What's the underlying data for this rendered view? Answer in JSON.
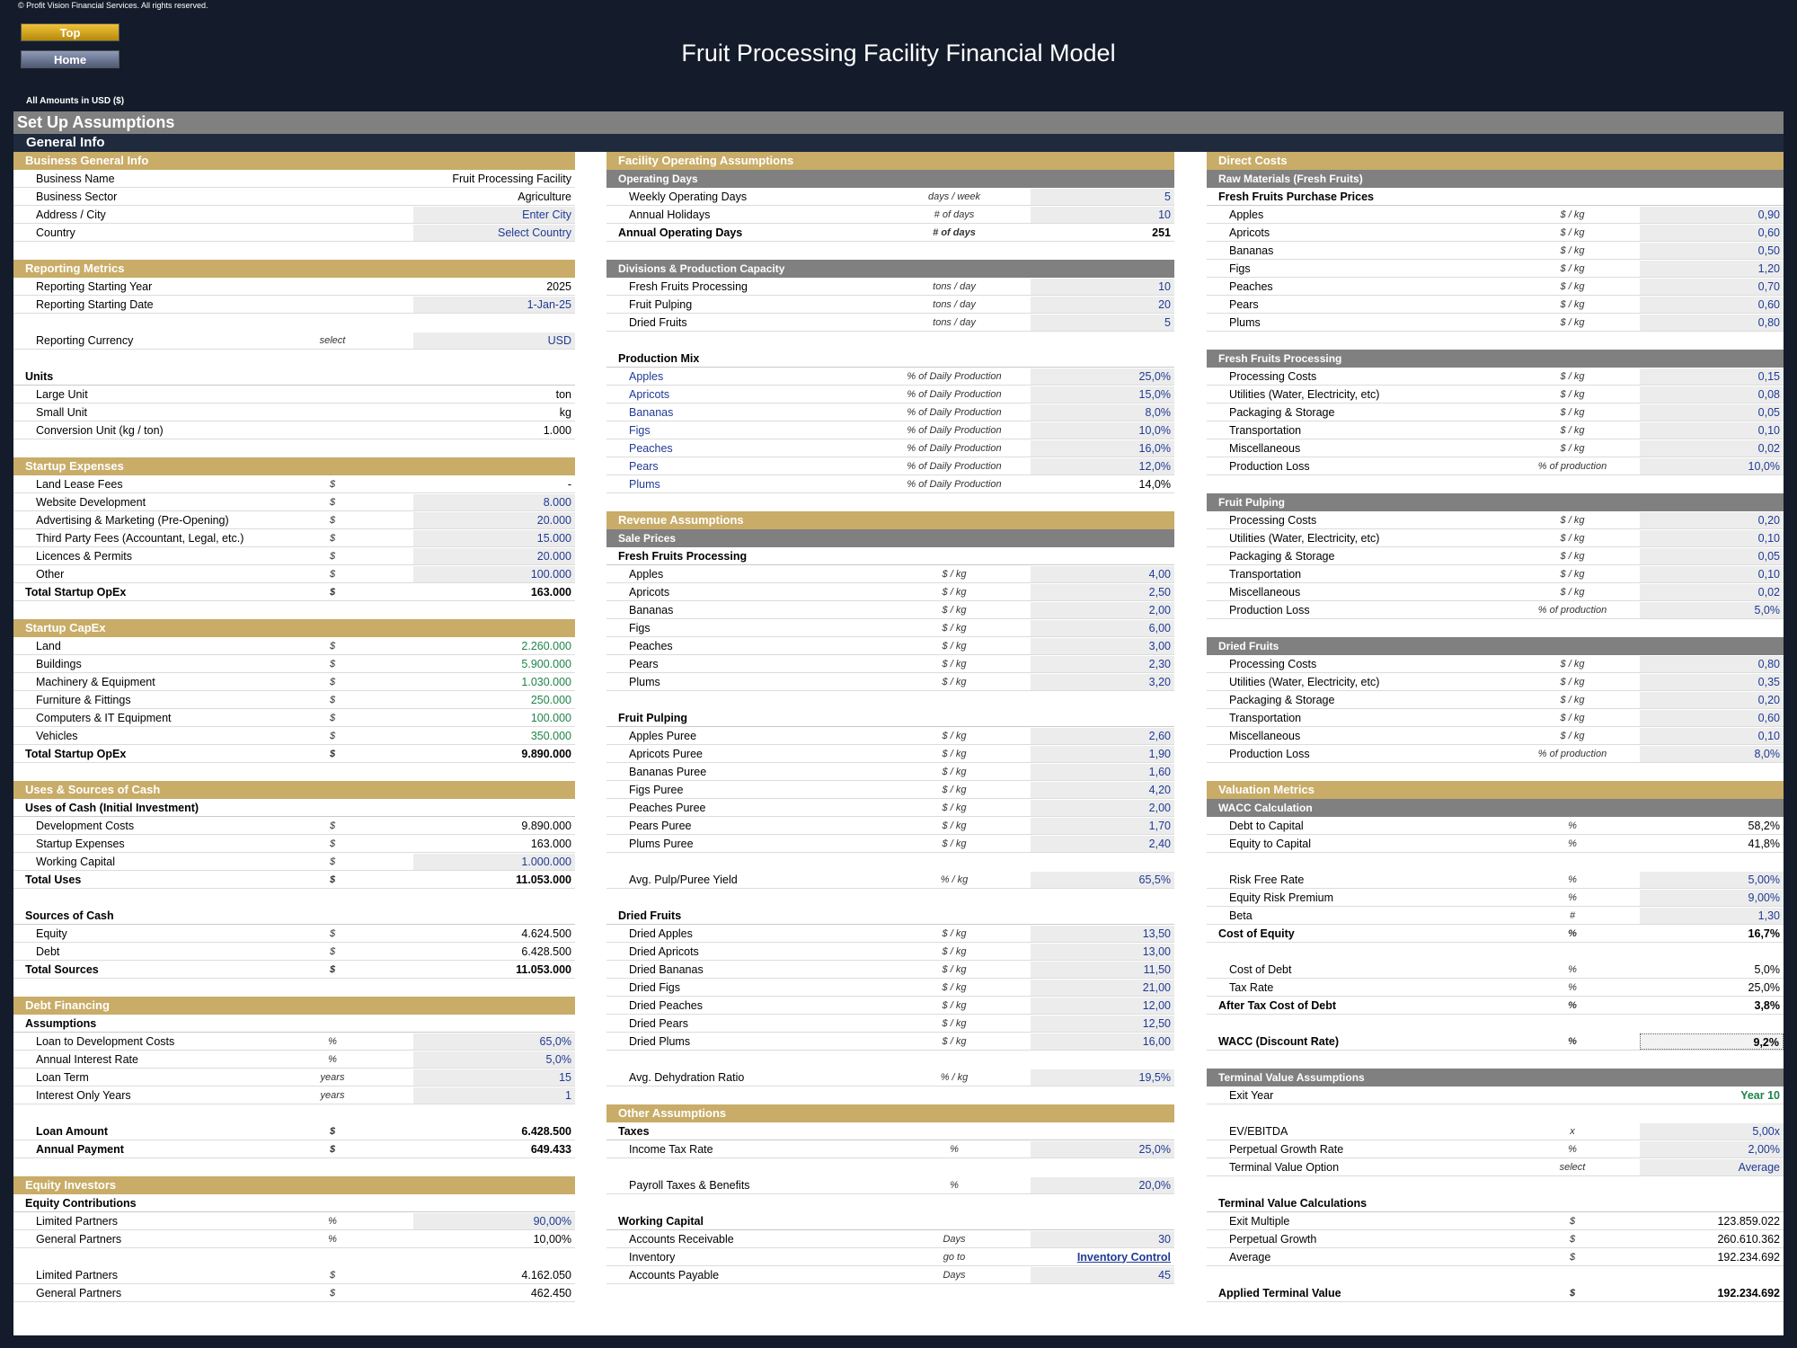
{
  "copyright": "© Profit Vision Financial Services. All rights reserved.",
  "nav": {
    "top": "Top",
    "home": "Home"
  },
  "title": "Fruit Processing Facility Financial Model",
  "currency_note": "All Amounts in  USD ($)",
  "setup_title": "Set Up Assumptions",
  "general_title": "General Info",
  "col1": {
    "business": {
      "title": "Business General Info",
      "rows": [
        {
          "label": "Business Name",
          "value": "Fruit Processing Facility"
        },
        {
          "label": "Business Sector",
          "value": "Agriculture"
        },
        {
          "label": "Address / City",
          "value": "Enter City"
        },
        {
          "label": "Country",
          "value": "Select Country"
        }
      ]
    },
    "reporting": {
      "title": "Reporting Metrics",
      "rows": [
        {
          "label": "Reporting Starting Year",
          "value": "2025"
        },
        {
          "label": "Reporting Starting Date",
          "value": "1-Jan-25"
        },
        {
          "label": "Reporting Currency",
          "unit": "select",
          "value": "USD"
        }
      ],
      "units_title": "Units",
      "units": [
        {
          "label": "Large Unit",
          "value": "ton"
        },
        {
          "label": "Small Unit",
          "value": "kg"
        },
        {
          "label": "Conversion Unit (kg / ton)",
          "value": "1.000"
        }
      ]
    },
    "startup_expenses": {
      "title": "Startup Expenses",
      "rows": [
        {
          "label": "Land Lease Fees",
          "unit": "$",
          "value": "-"
        },
        {
          "label": "Website Development",
          "unit": "$",
          "value": "8.000"
        },
        {
          "label": "Advertising & Marketing (Pre-Opening)",
          "unit": "$",
          "value": "20.000"
        },
        {
          "label": "Third Party Fees (Accountant, Legal, etc.)",
          "unit": "$",
          "value": "15.000"
        },
        {
          "label": "Licences & Permits",
          "unit": "$",
          "value": "20.000"
        },
        {
          "label": "Other",
          "unit": "$",
          "value": "100.000"
        }
      ],
      "total": {
        "label": "Total Startup OpEx",
        "unit": "$",
        "value": "163.000"
      }
    },
    "startup_capex": {
      "title": "Startup CapEx",
      "rows": [
        {
          "label": "Land",
          "unit": "$",
          "value": "2.260.000"
        },
        {
          "label": "Buildings",
          "unit": "$",
          "value": "5.900.000"
        },
        {
          "label": "Machinery & Equipment",
          "unit": "$",
          "value": "1.030.000"
        },
        {
          "label": "Furniture & Fittings",
          "unit": "$",
          "value": "250.000"
        },
        {
          "label": "Computers & IT Equipment",
          "unit": "$",
          "value": "100.000"
        },
        {
          "label": "Vehicles",
          "unit": "$",
          "value": "350.000"
        }
      ],
      "total": {
        "label": "Total Startup OpEx",
        "unit": "$",
        "value": "9.890.000"
      }
    },
    "uses_sources": {
      "title": "Uses & Sources of Cash",
      "uses_title": "Uses of Cash (Initial Investment)",
      "uses": [
        {
          "label": "Development Costs",
          "unit": "$",
          "value": "9.890.000"
        },
        {
          "label": "Startup Expenses",
          "unit": "$",
          "value": "163.000"
        },
        {
          "label": "Working Capital",
          "unit": "$",
          "value": "1.000.000"
        }
      ],
      "uses_total": {
        "label": "Total Uses",
        "unit": "$",
        "value": "11.053.000"
      },
      "sources_title": "Sources of Cash",
      "sources": [
        {
          "label": "Equity",
          "unit": "$",
          "value": "4.624.500"
        },
        {
          "label": "Debt",
          "unit": "$",
          "value": "6.428.500"
        }
      ],
      "sources_total": {
        "label": "Total Sources",
        "unit": "$",
        "value": "11.053.000"
      }
    },
    "debt": {
      "title": "Debt Financing",
      "assumptions_title": "Assumptions",
      "rows": [
        {
          "label": "Loan to Development Costs",
          "unit": "%",
          "value": "65,0%"
        },
        {
          "label": "Annual Interest Rate",
          "unit": "%",
          "value": "5,0%"
        },
        {
          "label": "Loan Term",
          "unit": "years",
          "value": "15"
        },
        {
          "label": "Interest Only Years",
          "unit": "years",
          "value": "1"
        }
      ],
      "loan_amount": {
        "label": "Loan Amount",
        "unit": "$",
        "value": "6.428.500"
      },
      "annual_payment": {
        "label": "Annual Payment",
        "unit": "$",
        "value": "649.433"
      }
    },
    "equity": {
      "title": "Equity Investors",
      "contrib_title": "Equity Contributions",
      "rows": [
        {
          "label": "Limited Partners",
          "unit": "%",
          "value": "90,00%"
        },
        {
          "label": "General Partners",
          "unit": "%",
          "value": "10,00%"
        }
      ],
      "amounts": [
        {
          "label": "Limited Partners",
          "unit": "$",
          "value": "4.162.050"
        },
        {
          "label": "General Partners",
          "unit": "$",
          "value": "462.450"
        }
      ]
    }
  },
  "col2": {
    "facility": {
      "title": "Facility Operating Assumptions",
      "sub": "Operating Days",
      "rows": [
        {
          "label": "Weekly Operating Days",
          "unit": "days / week",
          "value": "5"
        },
        {
          "label": "Annual Holidays",
          "unit": "# of days",
          "value": "10"
        }
      ],
      "total": {
        "label": "Annual Operating Days",
        "unit": "# of days",
        "value": "251"
      }
    },
    "divisions": {
      "sub": "Divisions & Production Capacity",
      "rows": [
        {
          "label": "Fresh Fruits Processing",
          "unit": "tons / day",
          "value": "10"
        },
        {
          "label": "Fruit Pulping",
          "unit": "tons / day",
          "value": "20"
        },
        {
          "label": "Dried Fruits",
          "unit": "tons / day",
          "value": "5"
        }
      ],
      "mix_title": "Production Mix",
      "mix": [
        {
          "label": "Apples",
          "unit": "% of Daily Production",
          "value": "25,0%"
        },
        {
          "label": "Apricots",
          "unit": "% of Daily Production",
          "value": "15,0%"
        },
        {
          "label": "Bananas",
          "unit": "% of Daily Production",
          "value": "8,0%"
        },
        {
          "label": "Figs",
          "unit": "% of Daily Production",
          "value": "10,0%"
        },
        {
          "label": "Peaches",
          "unit": "% of Daily Production",
          "value": "16,0%"
        },
        {
          "label": "Pears",
          "unit": "% of Daily Production",
          "value": "12,0%"
        },
        {
          "label": "Plums",
          "unit": "% of Daily Production",
          "value": "14,0%"
        }
      ]
    },
    "revenue": {
      "title": "Revenue Assumptions",
      "sub": "Sale Prices",
      "fresh_title": "Fresh Fruits Processing",
      "fresh": [
        {
          "label": "Apples",
          "unit": "$ / kg",
          "value": "4,00"
        },
        {
          "label": "Apricots",
          "unit": "$ / kg",
          "value": "2,50"
        },
        {
          "label": "Bananas",
          "unit": "$ / kg",
          "value": "2,00"
        },
        {
          "label": "Figs",
          "unit": "$ / kg",
          "value": "6,00"
        },
        {
          "label": "Peaches",
          "unit": "$ / kg",
          "value": "3,00"
        },
        {
          "label": "Pears",
          "unit": "$ / kg",
          "value": "2,30"
        },
        {
          "label": "Plums",
          "unit": "$ / kg",
          "value": "3,20"
        }
      ],
      "pulp_title": "Fruit Pulping",
      "pulp": [
        {
          "label": "Apples Puree",
          "unit": "$ / kg",
          "value": "2,60"
        },
        {
          "label": "Apricots Puree",
          "unit": "$ / kg",
          "value": "1,90"
        },
        {
          "label": "Bananas Puree",
          "unit": "$ / kg",
          "value": "1,60"
        },
        {
          "label": "Figs Puree",
          "unit": "$ / kg",
          "value": "4,20"
        },
        {
          "label": "Peaches Puree",
          "unit": "$ / kg",
          "value": "2,00"
        },
        {
          "label": "Pears Puree",
          "unit": "$ / kg",
          "value": "1,70"
        },
        {
          "label": "Plums Puree",
          "unit": "$ / kg",
          "value": "2,40"
        }
      ],
      "pulp_yield": {
        "label": "Avg. Pulp/Puree Yield",
        "unit": "% / kg",
        "value": "65,5%"
      },
      "dried_title": "Dried Fruits",
      "dried": [
        {
          "label": "Dried Apples",
          "unit": "$ / kg",
          "value": "13,50"
        },
        {
          "label": "Dried Apricots",
          "unit": "$ / kg",
          "value": "13,00"
        },
        {
          "label": "Dried Bananas",
          "unit": "$ / kg",
          "value": "11,50"
        },
        {
          "label": "Dried Figs",
          "unit": "$ / kg",
          "value": "21,00"
        },
        {
          "label": "Dried Peaches",
          "unit": "$ / kg",
          "value": "12,00"
        },
        {
          "label": "Dried Pears",
          "unit": "$ / kg",
          "value": "12,50"
        },
        {
          "label": "Dried Plums",
          "unit": "$ / kg",
          "value": "16,00"
        }
      ],
      "dehydration": {
        "label": "Avg. Dehydration Ratio",
        "unit": "% / kg",
        "value": "19,5%"
      }
    },
    "other": {
      "title": "Other Assumptions",
      "taxes_title": "Taxes",
      "income_tax": {
        "label": "Income Tax Rate",
        "unit": "%",
        "value": "25,0%"
      },
      "payroll": {
        "label": "Payroll Taxes & Benefits",
        "unit": "%",
        "value": "20,0%"
      },
      "wc_title": "Working Capital",
      "ar": {
        "label": "Accounts Receivable",
        "unit": "Days",
        "value": "30"
      },
      "inventory": {
        "label": "Inventory",
        "unit": "go to",
        "value": "Inventory Control"
      },
      "ap": {
        "label": "Accounts Payable",
        "unit": "Days",
        "value": "45"
      }
    }
  },
  "col3": {
    "direct": {
      "title": "Direct Costs",
      "sub": "Raw Materials (Fresh Fruits)",
      "prices_title": "Fresh Fruits Purchase Prices",
      "prices": [
        {
          "label": "Apples",
          "unit": "$ / kg",
          "value": "0,90"
        },
        {
          "label": "Apricots",
          "unit": "$ / kg",
          "value": "0,60"
        },
        {
          "label": "Bananas",
          "unit": "$ / kg",
          "value": "0,50"
        },
        {
          "label": "Figs",
          "unit": "$ / kg",
          "value": "1,20"
        },
        {
          "label": "Peaches",
          "unit": "$ / kg",
          "value": "0,70"
        },
        {
          "label": "Pears",
          "unit": "$ / kg",
          "value": "0,60"
        },
        {
          "label": "Plums",
          "unit": "$ / kg",
          "value": "0,80"
        }
      ]
    },
    "fresh_proc": {
      "sub": "Fresh Fruits Processing",
      "rows": [
        {
          "label": "Processing Costs",
          "unit": "$ / kg",
          "value": "0,15"
        },
        {
          "label": "Utilities (Water, Electricity, etc)",
          "unit": "$ / kg",
          "value": "0,08"
        },
        {
          "label": "Packaging & Storage",
          "unit": "$ / kg",
          "value": "0,05"
        },
        {
          "label": "Transportation",
          "unit": "$ / kg",
          "value": "0,10"
        },
        {
          "label": "Miscellaneous",
          "unit": "$ / kg",
          "value": "0,02"
        },
        {
          "label": "Production Loss",
          "unit": "% of production",
          "value": "10,0%"
        }
      ]
    },
    "pulping": {
      "sub": "Fruit Pulping",
      "rows": [
        {
          "label": "Processing Costs",
          "unit": "$ / kg",
          "value": "0,20"
        },
        {
          "label": "Utilities (Water, Electricity, etc)",
          "unit": "$ / kg",
          "value": "0,10"
        },
        {
          "label": "Packaging & Storage",
          "unit": "$ / kg",
          "value": "0,05"
        },
        {
          "label": "Transportation",
          "unit": "$ / kg",
          "value": "0,10"
        },
        {
          "label": "Miscellaneous",
          "unit": "$ / kg",
          "value": "0,02"
        },
        {
          "label": "Production Loss",
          "unit": "% of production",
          "value": "5,0%"
        }
      ]
    },
    "dried": {
      "sub": "Dried Fruits",
      "rows": [
        {
          "label": "Processing Costs",
          "unit": "$ / kg",
          "value": "0,80"
        },
        {
          "label": "Utilities (Water, Electricity, etc)",
          "unit": "$ / kg",
          "value": "0,35"
        },
        {
          "label": "Packaging & Storage",
          "unit": "$ / kg",
          "value": "0,20"
        },
        {
          "label": "Transportation",
          "unit": "$ / kg",
          "value": "0,60"
        },
        {
          "label": "Miscellaneous",
          "unit": "$ / kg",
          "value": "0,10"
        },
        {
          "label": "Production Loss",
          "unit": "% of production",
          "value": "8,0%"
        }
      ]
    },
    "valuation": {
      "title": "Valuation Metrics",
      "sub": "WACC Calculation",
      "capital": [
        {
          "label": "Debt to Capital",
          "unit": "%",
          "value": "58,2%"
        },
        {
          "label": "Equity to Capital",
          "unit": "%",
          "value": "41,8%"
        }
      ],
      "risk": [
        {
          "label": "Risk Free Rate",
          "unit": "%",
          "value": "5,00%"
        },
        {
          "label": "Equity Risk Premium",
          "unit": "%",
          "value": "9,00%"
        },
        {
          "label": "Beta",
          "unit": "#",
          "value": "1,30"
        }
      ],
      "cost_equity": {
        "label": "Cost of Equity",
        "unit": "%",
        "value": "16,7%"
      },
      "debt": [
        {
          "label": "Cost of Debt",
          "unit": "%",
          "value": "5,0%"
        },
        {
          "label": "Tax Rate",
          "unit": "%",
          "value": "25,0%"
        }
      ],
      "after_tax": {
        "label": "After Tax Cost of Debt",
        "unit": "%",
        "value": "3,8%"
      },
      "wacc": {
        "label": "WACC (Discount Rate)",
        "unit": "%",
        "value": "9,2%"
      }
    },
    "terminal": {
      "sub": "Terminal Value Assumptions",
      "exit_year": {
        "label": "Exit Year",
        "value": "Year 10"
      },
      "rows": [
        {
          "label": "EV/EBITDA",
          "unit": "x",
          "value": "5,00x"
        },
        {
          "label": "Perpetual Growth Rate",
          "unit": "%",
          "value": "2,00%"
        },
        {
          "label": "Terminal Value Option",
          "unit": "select",
          "value": "Average"
        }
      ],
      "calc_title": "Terminal Value Calculations",
      "calc": [
        {
          "label": "Exit Multiple",
          "unit": "$",
          "value": "123.859.022"
        },
        {
          "label": "Perpetual Growth",
          "unit": "$",
          "value": "260.610.362"
        },
        {
          "label": "Average",
          "unit": "$",
          "value": "192.234.692"
        }
      ],
      "applied": {
        "label": "Applied Terminal Value",
        "unit": "$",
        "value": "192.234.692"
      }
    }
  },
  "colors": {
    "background": "#141c2b",
    "section_header": "#c8ac67",
    "sub_header": "#808080",
    "input_blue": "#1f3a93",
    "link_green": "#1e8449",
    "input_bg": "#ececec"
  }
}
